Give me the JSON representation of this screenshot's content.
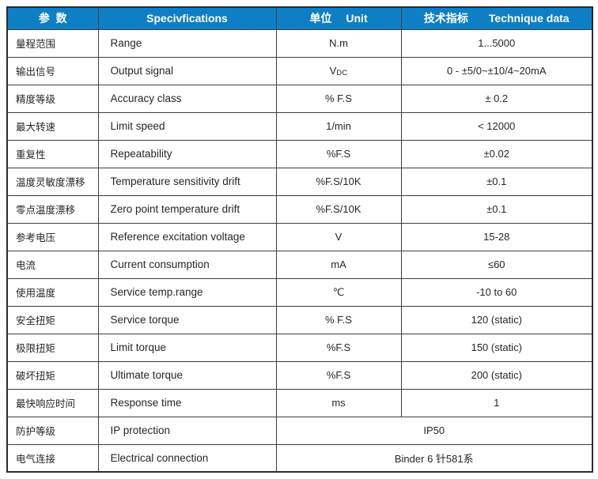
{
  "colors": {
    "header_bg": "#0F7FC5",
    "header_text": "#FFFFFF",
    "border_outer": "#2B2B2B",
    "border_inner": "#3D3D3D",
    "text": "#262626",
    "row_bg": "#FFFFFF"
  },
  "table": {
    "header": {
      "param_zh": "参  数",
      "spec": "Specivfications",
      "unit_zh": "单位",
      "unit_en": "Unit",
      "data_zh": "技术指标",
      "data_en": "Technique data"
    },
    "rows": [
      {
        "param": "量程范围",
        "spec": "Range",
        "unit": "N.m",
        "value": "1...5000"
      },
      {
        "param": "输出信号",
        "spec": "Output signal",
        "unit": "V",
        "unit_sub": "DC",
        "value": "0 - ±5/0~±10/4~20mA"
      },
      {
        "param": "精度等级",
        "spec": "Accuracy class",
        "unit": "% F.S",
        "value": "± 0.2"
      },
      {
        "param": "最大转速",
        "spec": "Limit speed",
        "unit": "1/min",
        "value": "< 12000"
      },
      {
        "param": "重复性",
        "spec": "Repeatability",
        "unit": "%F.S",
        "value": "±0.02"
      },
      {
        "param": "温度灵敏度漂移",
        "spec": "Temperature sensitivity drift",
        "unit": "%F.S/10K",
        "value": "±0.1"
      },
      {
        "param": "零点温度漂移",
        "spec": "Zero point temperature drift",
        "unit": "%F.S/10K",
        "value": "±0.1"
      },
      {
        "param": "参考电压",
        "spec": "Reference excitation voltage",
        "unit": "V",
        "value": "15-28"
      },
      {
        "param": "电流",
        "spec": "Current consumption",
        "unit": "mA",
        "value": "≤60"
      },
      {
        "param": "使用温度",
        "spec": "Service temp.range",
        "unit": "℃",
        "value": "-10 to 60"
      },
      {
        "param": "安全扭矩",
        "spec": "Service torque",
        "unit": "% F.S",
        "value": "120 (static)"
      },
      {
        "param": "极限扭矩",
        "spec": "Limit torque",
        "unit": "%F.S",
        "value": "150 (static)"
      },
      {
        "param": "破坏扭矩",
        "spec": "Ultimate torque",
        "unit": "%F.S",
        "value": "200 (static)"
      },
      {
        "param": "最快响应时间",
        "spec": "Response time",
        "unit": "ms",
        "value": "1"
      },
      {
        "param": "防护等级",
        "spec": "IP protection",
        "merged": true,
        "value": "IP50"
      },
      {
        "param": "电气连接",
        "spec": "Electrical connection",
        "merged": true,
        "value": "Binder 6 针581系"
      }
    ]
  }
}
